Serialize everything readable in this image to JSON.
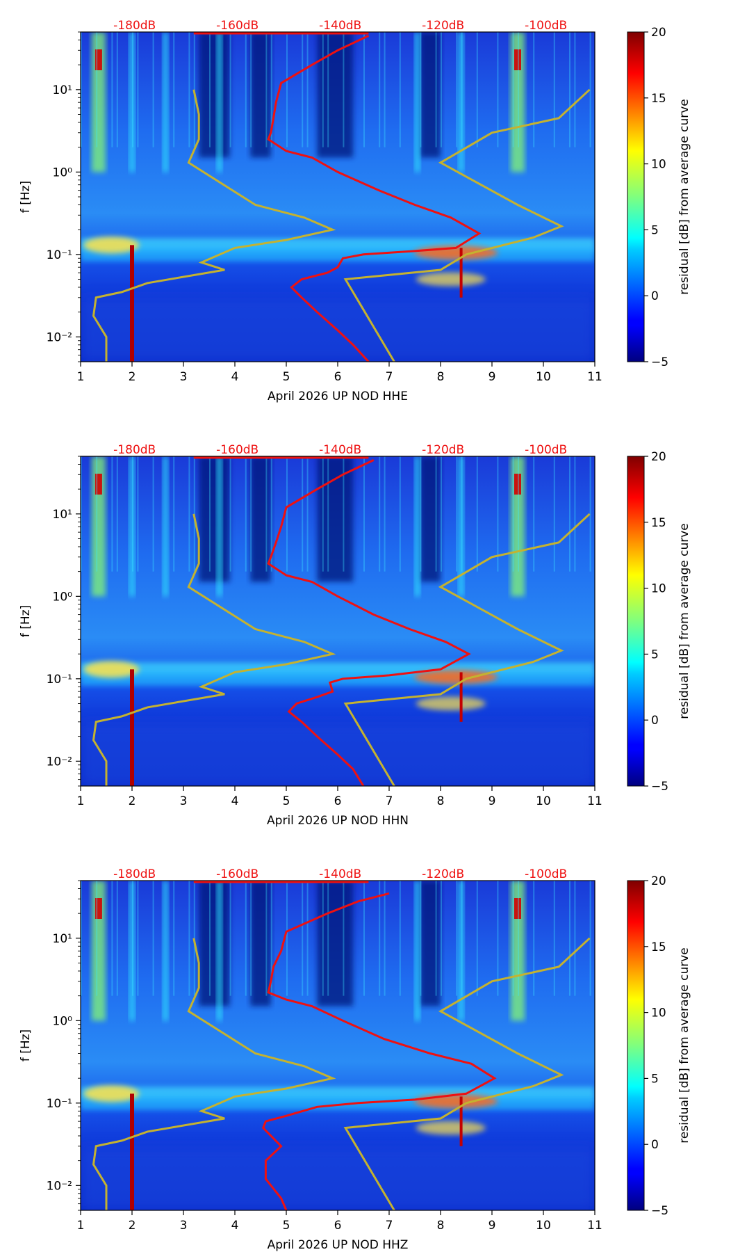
{
  "colorbar": {
    "label": "residual [dB] from average curve",
    "range": [
      -5,
      20
    ],
    "ticks": [
      "20",
      "15",
      "10",
      "5",
      "0",
      "−5"
    ],
    "colormap": "jet"
  },
  "db_scale": {
    "color": "#ee1111",
    "labels": [
      "-180dB",
      "-160dB",
      "-140dB",
      "-120dB",
      "-100dB"
    ],
    "positions_day": [
      2.05,
      4.05,
      6.05,
      8.05,
      10.05
    ]
  },
  "curve_colors": {
    "noise_models": "#c4b230",
    "median_psd": "#ee1111"
  },
  "chart_data": [
    {
      "type": "heatmap",
      "xlabel": "April 2026 UP NOD  HHE",
      "ylabel": "f [Hz]",
      "xlim": [
        1,
        11
      ],
      "ylim_hz": [
        0.005,
        50
      ],
      "yscale": "log",
      "x_ticks": [
        "1",
        "2",
        "3",
        "4",
        "5",
        "6",
        "7",
        "8",
        "9",
        "10",
        "11"
      ],
      "y_ticks": [
        "10¹",
        "10⁰",
        "10⁻¹",
        "10⁻²"
      ],
      "events_day": [
        1.35,
        2.0,
        2.65,
        3.7,
        7.55,
        8.4,
        9.5
      ],
      "microseism_hz": [
        0.13,
        0.1
      ],
      "red_curve": [
        [
          6.6,
          45
        ],
        [
          6.0,
          30
        ],
        [
          5.5,
          20
        ],
        [
          4.9,
          12
        ],
        [
          4.8,
          7
        ],
        [
          4.75,
          4.5
        ],
        [
          4.7,
          3
        ],
        [
          4.65,
          2.5
        ],
        [
          5.0,
          1.8
        ],
        [
          5.5,
          1.5
        ],
        [
          6.0,
          1.0
        ],
        [
          6.8,
          0.6
        ],
        [
          7.5,
          0.4
        ],
        [
          8.2,
          0.28
        ],
        [
          8.75,
          0.18
        ],
        [
          8.3,
          0.12
        ],
        [
          7.5,
          0.11
        ],
        [
          6.5,
          0.1
        ],
        [
          6.1,
          0.09
        ],
        [
          6.0,
          0.07
        ],
        [
          5.8,
          0.06
        ],
        [
          5.3,
          0.05
        ],
        [
          5.1,
          0.04
        ],
        [
          5.3,
          0.03
        ],
        [
          5.6,
          0.02
        ],
        [
          6.0,
          0.012
        ],
        [
          6.3,
          0.008
        ],
        [
          6.6,
          0.005
        ]
      ],
      "low_noise_model": [
        [
          3.2,
          10
        ],
        [
          3.3,
          5
        ],
        [
          3.3,
          2.5
        ],
        [
          3.1,
          1.3
        ],
        [
          4.4,
          0.4
        ],
        [
          5.35,
          0.28
        ],
        [
          5.9,
          0.2
        ],
        [
          5.0,
          0.15
        ],
        [
          4.0,
          0.12
        ],
        [
          3.35,
          0.08
        ],
        [
          3.8,
          0.065
        ],
        [
          2.3,
          0.045
        ],
        [
          1.8,
          0.035
        ],
        [
          1.3,
          0.03
        ],
        [
          1.25,
          0.018
        ],
        [
          1.5,
          0.01
        ],
        [
          1.5,
          0.005
        ]
      ],
      "high_noise_model": [
        [
          10.9,
          10
        ],
        [
          10.3,
          4.5
        ],
        [
          9.0,
          3.0
        ],
        [
          8.0,
          1.3
        ],
        [
          9.5,
          0.4
        ],
        [
          10.35,
          0.22
        ],
        [
          9.8,
          0.16
        ],
        [
          8.5,
          0.1
        ],
        [
          8.0,
          0.065
        ],
        [
          6.15,
          0.05
        ],
        [
          7.1,
          0.005
        ]
      ]
    },
    {
      "type": "heatmap",
      "xlabel": "April 2026 UP NOD  HHN",
      "ylabel": "f [Hz]",
      "xlim": [
        1,
        11
      ],
      "ylim_hz": [
        0.005,
        50
      ],
      "yscale": "log",
      "x_ticks": [
        "1",
        "2",
        "3",
        "4",
        "5",
        "6",
        "7",
        "8",
        "9",
        "10",
        "11"
      ],
      "y_ticks": [
        "10¹",
        "10⁰",
        "10⁻¹",
        "10⁻²"
      ],
      "events_day": [
        1.35,
        2.0,
        2.65,
        3.7,
        7.55,
        8.4,
        9.5
      ],
      "microseism_hz": [
        0.13,
        0.1
      ],
      "red_curve": [
        [
          6.7,
          45
        ],
        [
          6.1,
          30
        ],
        [
          5.6,
          20
        ],
        [
          5.0,
          12
        ],
        [
          4.9,
          7
        ],
        [
          4.8,
          4.5
        ],
        [
          4.7,
          3
        ],
        [
          4.65,
          2.5
        ],
        [
          5.0,
          1.8
        ],
        [
          5.5,
          1.5
        ],
        [
          6.0,
          1.0
        ],
        [
          6.7,
          0.6
        ],
        [
          7.4,
          0.4
        ],
        [
          8.1,
          0.28
        ],
        [
          8.55,
          0.2
        ],
        [
          8.0,
          0.13
        ],
        [
          7.0,
          0.11
        ],
        [
          6.1,
          0.1
        ],
        [
          5.85,
          0.09
        ],
        [
          5.9,
          0.07
        ],
        [
          5.6,
          0.06
        ],
        [
          5.2,
          0.05
        ],
        [
          5.05,
          0.04
        ],
        [
          5.3,
          0.03
        ],
        [
          5.6,
          0.02
        ],
        [
          6.0,
          0.012
        ],
        [
          6.3,
          0.008
        ],
        [
          6.5,
          0.005
        ]
      ],
      "low_noise_model": [
        [
          3.2,
          10
        ],
        [
          3.3,
          5
        ],
        [
          3.3,
          2.5
        ],
        [
          3.1,
          1.3
        ],
        [
          4.4,
          0.4
        ],
        [
          5.35,
          0.28
        ],
        [
          5.9,
          0.2
        ],
        [
          5.0,
          0.15
        ],
        [
          4.0,
          0.12
        ],
        [
          3.35,
          0.08
        ],
        [
          3.8,
          0.065
        ],
        [
          2.3,
          0.045
        ],
        [
          1.8,
          0.035
        ],
        [
          1.3,
          0.03
        ],
        [
          1.25,
          0.018
        ],
        [
          1.5,
          0.01
        ],
        [
          1.5,
          0.005
        ]
      ],
      "high_noise_model": [
        [
          10.9,
          10
        ],
        [
          10.3,
          4.5
        ],
        [
          9.0,
          3.0
        ],
        [
          8.0,
          1.3
        ],
        [
          9.5,
          0.4
        ],
        [
          10.35,
          0.22
        ],
        [
          9.8,
          0.16
        ],
        [
          8.5,
          0.1
        ],
        [
          8.0,
          0.065
        ],
        [
          6.15,
          0.05
        ],
        [
          7.1,
          0.005
        ]
      ]
    },
    {
      "type": "heatmap",
      "xlabel": "April 2026 UP NOD  HHZ",
      "ylabel": "f [Hz]",
      "xlim": [
        1,
        11
      ],
      "ylim_hz": [
        0.005,
        50
      ],
      "yscale": "log",
      "x_ticks": [
        "1",
        "2",
        "3",
        "4",
        "5",
        "6",
        "7",
        "8",
        "9",
        "10",
        "11"
      ],
      "y_ticks": [
        "10¹",
        "10⁰",
        "10⁻¹",
        "10⁻²"
      ],
      "events_day": [
        1.35,
        2.0,
        2.65,
        3.7,
        7.55,
        8.4,
        9.5
      ],
      "microseism_hz": [
        0.13,
        0.1
      ],
      "red_curve": [
        [
          7.0,
          35
        ],
        [
          6.4,
          28
        ],
        [
          5.8,
          20
        ],
        [
          5.0,
          12
        ],
        [
          4.9,
          7
        ],
        [
          4.75,
          4.5
        ],
        [
          4.7,
          3
        ],
        [
          4.65,
          2.2
        ],
        [
          5.0,
          1.8
        ],
        [
          5.5,
          1.5
        ],
        [
          6.1,
          1.0
        ],
        [
          6.9,
          0.6
        ],
        [
          7.8,
          0.4
        ],
        [
          8.6,
          0.3
        ],
        [
          9.05,
          0.2
        ],
        [
          8.5,
          0.13
        ],
        [
          7.5,
          0.11
        ],
        [
          6.4,
          0.1
        ],
        [
          5.6,
          0.09
        ],
        [
          5.0,
          0.07
        ],
        [
          4.6,
          0.06
        ],
        [
          4.55,
          0.05
        ],
        [
          4.9,
          0.03
        ],
        [
          4.6,
          0.02
        ],
        [
          4.6,
          0.012
        ],
        [
          4.9,
          0.007
        ],
        [
          5.0,
          0.005
        ]
      ],
      "low_noise_model": [
        [
          3.2,
          10
        ],
        [
          3.3,
          5
        ],
        [
          3.3,
          2.5
        ],
        [
          3.1,
          1.3
        ],
        [
          4.4,
          0.4
        ],
        [
          5.35,
          0.28
        ],
        [
          5.9,
          0.2
        ],
        [
          5.0,
          0.15
        ],
        [
          4.0,
          0.12
        ],
        [
          3.35,
          0.08
        ],
        [
          3.8,
          0.065
        ],
        [
          2.3,
          0.045
        ],
        [
          1.8,
          0.035
        ],
        [
          1.3,
          0.03
        ],
        [
          1.25,
          0.018
        ],
        [
          1.5,
          0.01
        ],
        [
          1.5,
          0.005
        ]
      ],
      "high_noise_model": [
        [
          10.9,
          10
        ],
        [
          10.3,
          4.5
        ],
        [
          9.0,
          3.0
        ],
        [
          8.0,
          1.3
        ],
        [
          9.5,
          0.4
        ],
        [
          10.35,
          0.22
        ],
        [
          9.8,
          0.16
        ],
        [
          8.5,
          0.1
        ],
        [
          8.0,
          0.065
        ],
        [
          6.15,
          0.05
        ],
        [
          7.1,
          0.005
        ]
      ]
    }
  ]
}
